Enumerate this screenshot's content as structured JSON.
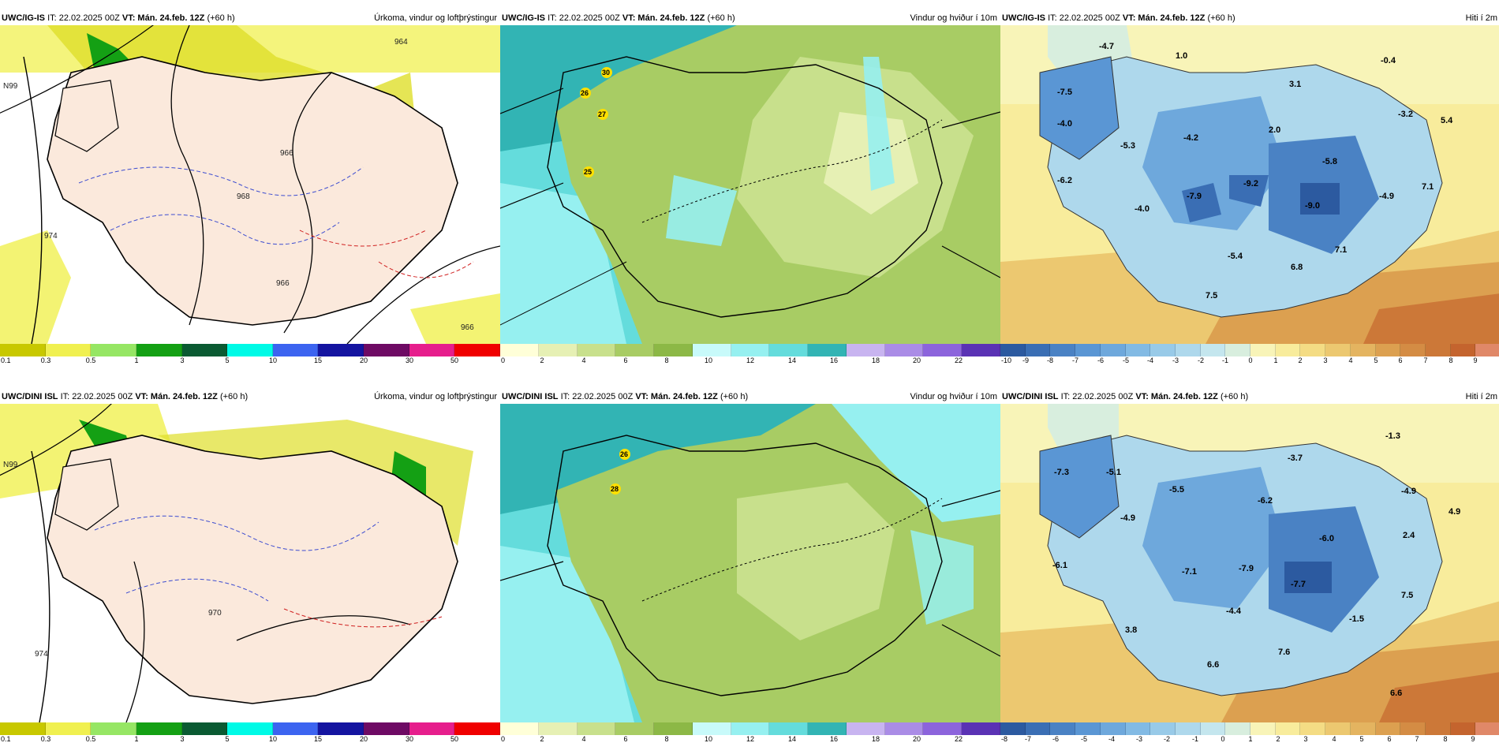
{
  "rows": [
    {
      "model": "UWC/IG-IS",
      "it": "IT: 22.02.2025 00Z",
      "vt_label": "VT: Mán. 24.feb. 12Z",
      "lead": "(+60 h)",
      "precip": {
        "title": "Úrkoma, vindur og loftþrýstingur",
        "ticks": [
          "0.1",
          "0.3",
          "0.5",
          "1",
          "3",
          "5",
          "10",
          "15",
          "20",
          "30",
          "50"
        ],
        "isobars": [
          "964",
          "974",
          "966",
          "968",
          "966",
          "966"
        ],
        "lat_label": "N99"
      },
      "wind": {
        "title": "Vindur og hviður í 10m",
        "ticks": [
          "0",
          "2",
          "4",
          "6",
          "8",
          "10",
          "12",
          "14",
          "16",
          "18",
          "20",
          "22"
        ],
        "gust_markers": [
          "30",
          "26",
          "27",
          "25"
        ]
      },
      "temp": {
        "title": "Hiti í 2m",
        "ticks": [
          "-10",
          "-9",
          "-8",
          "-7",
          "-6",
          "-5",
          "-4",
          "-3",
          "-2",
          "-1",
          "0",
          "1",
          "2",
          "3",
          "4",
          "5",
          "6",
          "7",
          "8",
          "9"
        ],
        "labels": [
          "-4.7",
          "1.0",
          "-0.4",
          "-7.5",
          "3.1",
          "-4.0",
          "-3.2",
          "5.4",
          "-4.2",
          "2.0",
          "-5.3",
          "-5.8",
          "-6.2",
          "-7.9",
          "-9.2",
          "-4.9",
          "7.1",
          "-4.0",
          "-9.0",
          "-5.4",
          "7.1",
          "6.8",
          "7.5"
        ]
      }
    },
    {
      "model": "UWC/DINI ISL",
      "it": "IT: 22.02.2025 00Z",
      "vt_label": "VT: Mán. 24.feb. 12Z",
      "lead": "(+60 h)",
      "precip": {
        "title": "Úrkoma, vindur og loftþrýstingur",
        "ticks": [
          "0.1",
          "0.3",
          "0.5",
          "1",
          "3",
          "5",
          "10",
          "15",
          "20",
          "30",
          "50"
        ],
        "isobars": [
          "974",
          "970"
        ],
        "lat_label": "N99"
      },
      "wind": {
        "title": "Vindur og hviður í 10m",
        "ticks": [
          "0",
          "2",
          "4",
          "6",
          "8",
          "10",
          "12",
          "14",
          "16",
          "18",
          "20",
          "22"
        ],
        "gust_markers": [
          "26",
          "28"
        ]
      },
      "temp": {
        "title": "Hiti í 2m",
        "ticks": [
          "-8",
          "-7",
          "-6",
          "-5",
          "-4",
          "-3",
          "-2",
          "-1",
          "0",
          "1",
          "2",
          "3",
          "4",
          "5",
          "6",
          "7",
          "8",
          "9"
        ],
        "labels": [
          "-1.3",
          "-7.3",
          "-5.1",
          "-3.7",
          "-5.5",
          "-6.2",
          "-4.9",
          "4.9",
          "-4.9",
          "-6.0",
          "2.4",
          "-6.1",
          "-7.1",
          "-7.9",
          "-7.7",
          "7.5",
          "-4.4",
          "-1.5",
          "3.8",
          "7.6",
          "6.6",
          "6.6"
        ]
      }
    }
  ],
  "colors": {
    "precip": [
      "#c8c800",
      "#dede2a",
      "#b8f070",
      "#8ae04a",
      "#14a014",
      "#0a6e32",
      "#00f0e6",
      "#3c6cf0",
      "#1428b4",
      "#4a0a6e",
      "#b40a78",
      "#f01478"
    ],
    "precip_bar": [
      "#c8c800",
      "#f0f050",
      "#96e664",
      "#14a014",
      "#0a5a32",
      "#00fae6",
      "#3c64f0",
      "#1414a0",
      "#6e0a64",
      "#e61e8c",
      "#f00000"
    ],
    "wind": [
      "#ffffd8",
      "#e6f0b4",
      "#c8e08c",
      "#a8cc64",
      "#8cb846",
      "#c8fafa",
      "#96f0f0",
      "#64dcdc",
      "#32b4b4",
      "#c8b4f0",
      "#aa8ce6",
      "#8c64dc",
      "#5a32b4"
    ],
    "temp": [
      "#2c5aa0",
      "#3a6eb4",
      "#4a82c4",
      "#5a96d4",
      "#6ea8dc",
      "#82bae4",
      "#98cae8",
      "#aed8ec",
      "#c4e6ee",
      "#d8eede",
      "#f8f4b8",
      "#f8ec9c",
      "#f4dc84",
      "#ecc870",
      "#e4b460",
      "#dca050",
      "#d48c44",
      "#cc7838",
      "#c4642e",
      "#e08868"
    ]
  }
}
